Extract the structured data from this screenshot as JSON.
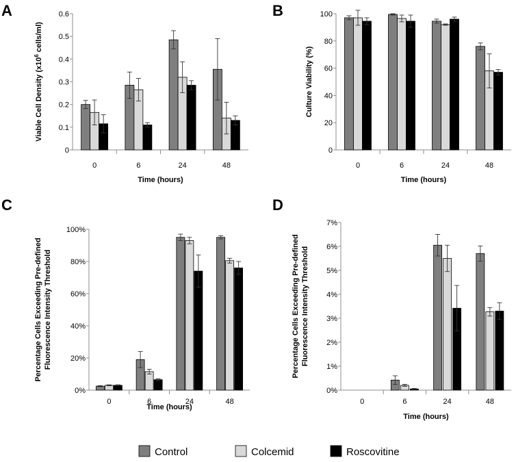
{
  "colors": {
    "control": "#7f7f7f",
    "colcemid": "#d9d9d9",
    "roscovitine": "#000000",
    "axis": "#8c8c8c"
  },
  "legend": {
    "items": [
      {
        "label": "Control",
        "color": "#7f7f7f"
      },
      {
        "label": "Colcemid",
        "color": "#d9d9d9"
      },
      {
        "label": "Roscovitine",
        "color": "#000000"
      }
    ]
  },
  "chart_data": [
    {
      "panel": "A",
      "type": "bar",
      "categories": [
        "0",
        "6",
        "24",
        "48"
      ],
      "xlabel": "Time (hours)",
      "ylabel_main": "Viable Cell Density (x10",
      "ylabel_sup": "6",
      "ylabel_tail": " cells/ml)",
      "ylim": [
        0,
        0.6
      ],
      "yticks": [
        0,
        0.1,
        0.2,
        0.3,
        0.4,
        0.5,
        0.6
      ],
      "ytick_labels": [
        "0",
        "0.1",
        "0.2",
        "0.3",
        "0.4",
        "0.5",
        "0.6"
      ],
      "series": [
        {
          "name": "Control",
          "values": [
            0.2,
            0.285,
            0.485,
            0.355
          ],
          "errors": [
            0.018,
            0.058,
            0.04,
            0.135
          ]
        },
        {
          "name": "Colcemid",
          "values": [
            0.165,
            0.265,
            0.32,
            0.14
          ],
          "errors": [
            0.055,
            0.05,
            0.068,
            0.07
          ]
        },
        {
          "name": "Roscovitine",
          "values": [
            0.115,
            0.11,
            0.285,
            0.13
          ],
          "errors": [
            0.04,
            0.01,
            0.02,
            0.02
          ]
        }
      ]
    },
    {
      "panel": "B",
      "type": "bar",
      "categories": [
        "0",
        "6",
        "24",
        "48"
      ],
      "xlabel": "Time (hours)",
      "ylabel_main": "Culture Viability (%)",
      "ylabel_sup": "",
      "ylabel_tail": "",
      "ylim": [
        0,
        100
      ],
      "yticks": [
        0,
        20,
        40,
        60,
        80,
        100
      ],
      "ytick_labels": [
        "0",
        "20",
        "40",
        "60",
        "80",
        "100"
      ],
      "series": [
        {
          "name": "Control",
          "values": [
            97,
            99.5,
            94.5,
            76
          ],
          "errors": [
            1.5,
            0.5,
            1.5,
            2.5
          ]
        },
        {
          "name": "Colcemid",
          "values": [
            97,
            96.5,
            92,
            58
          ],
          "errors": [
            5.5,
            2.5,
            0.5,
            12.5
          ]
        },
        {
          "name": "Roscovitine",
          "values": [
            94.5,
            94.5,
            96,
            57
          ],
          "errors": [
            2.5,
            4.5,
            1.5,
            2
          ]
        }
      ]
    },
    {
      "panel": "C",
      "type": "bar",
      "categories": [
        "0",
        "6",
        "24",
        "48"
      ],
      "xlabel": "Time (hours)",
      "ylabel_line1": "Percentage Cells Exceeding Pre-defined",
      "ylabel_line2": "Fluorescence Intensity Threshold",
      "ylim": [
        0,
        100
      ],
      "yticks": [
        0,
        20,
        40,
        60,
        80,
        100
      ],
      "ytick_labels": [
        "0%",
        "20%",
        "40%",
        "60%",
        "80%",
        "100%"
      ],
      "series": [
        {
          "name": "Control",
          "values": [
            2.5,
            19,
            95,
            95
          ],
          "errors": [
            0.3,
            5,
            2,
            1
          ]
        },
        {
          "name": "Colcemid",
          "values": [
            3,
            11.5,
            93,
            80.5
          ],
          "errors": [
            0.3,
            1.5,
            2,
            1.5
          ]
        },
        {
          "name": "Roscovitine",
          "values": [
            3,
            6.5,
            74,
            76
          ],
          "errors": [
            0.3,
            0.5,
            10,
            4
          ]
        }
      ]
    },
    {
      "panel": "D",
      "type": "bar",
      "categories": [
        "0",
        "6",
        "24",
        "48"
      ],
      "xlabel": "Time (hours)",
      "ylabel_line1": "Percentage Cells Exceeding Pre-defined",
      "ylabel_line2": "Fluorescence Intensity Threshold",
      "ylim": [
        0,
        7
      ],
      "yticks": [
        0,
        1,
        2,
        3,
        4,
        5,
        6,
        7
      ],
      "ytick_labels": [
        "0%",
        "1%",
        "2%",
        "3%",
        "4%",
        "5%",
        "6%",
        "7%"
      ],
      "series": [
        {
          "name": "Control",
          "values": [
            0,
            0.42,
            6.05,
            5.7
          ],
          "errors": [
            0,
            0.18,
            0.45,
            0.32
          ]
        },
        {
          "name": "Colcemid",
          "values": [
            0,
            0.2,
            5.5,
            3.27
          ],
          "errors": [
            0,
            0.04,
            0.55,
            0.18
          ]
        },
        {
          "name": "Roscovitine",
          "values": [
            0,
            0.05,
            3.42,
            3.3
          ],
          "errors": [
            0,
            0.02,
            0.95,
            0.35
          ]
        }
      ]
    }
  ]
}
